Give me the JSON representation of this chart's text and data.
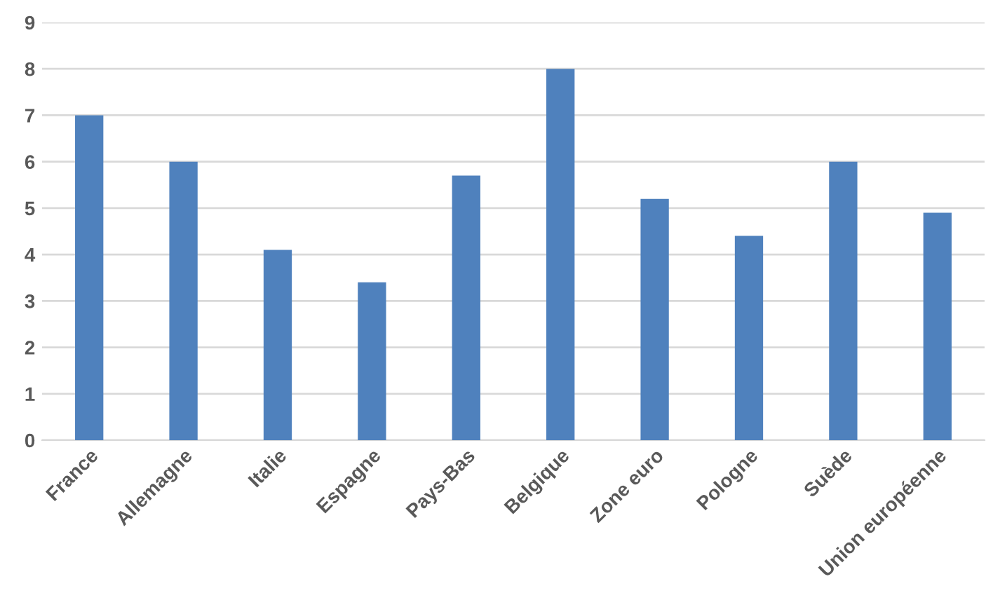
{
  "chart_data": {
    "type": "bar",
    "categories": [
      "France",
      "Allemagne",
      "Italie",
      "Espagne",
      "Pays-Bas",
      "Belgique",
      "Zone euro",
      "Pologne",
      "Suède",
      "Union européenne"
    ],
    "values": [
      7.0,
      6.0,
      4.1,
      3.4,
      5.7,
      8.0,
      5.2,
      4.4,
      6.0,
      4.9
    ],
    "color": "#4f81bd",
    "ylim": [
      0,
      9
    ],
    "yticks": [
      0,
      1,
      2,
      3,
      4,
      5,
      6,
      7,
      8,
      9
    ],
    "grid": "y"
  }
}
